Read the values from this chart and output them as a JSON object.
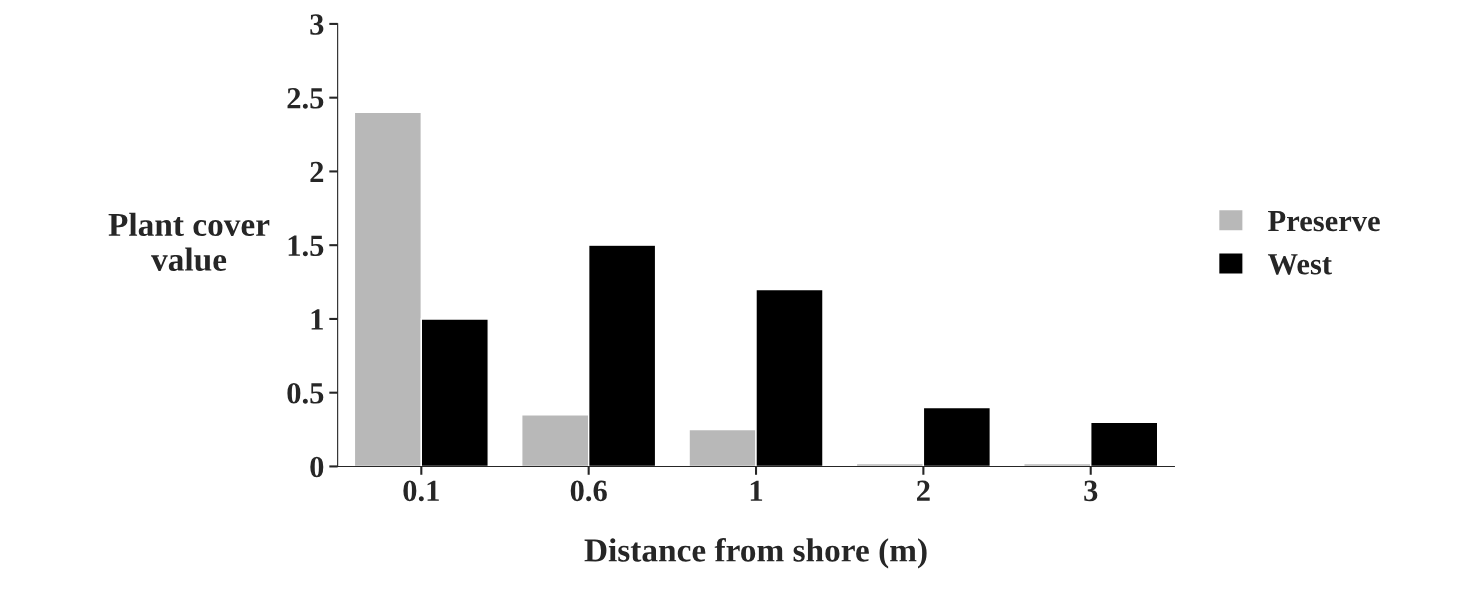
{
  "chart_data": {
    "type": "bar",
    "xlabel": "Distance from shore (m)",
    "ylabel": "Plant cover\nvalue",
    "categories": [
      "0.1",
      "0.6",
      "1",
      "2",
      "3"
    ],
    "series": [
      {
        "name": "Preserve",
        "color": "#b8b8b8",
        "values": [
          2.4,
          0.35,
          0.25,
          0.02,
          0.02
        ]
      },
      {
        "name": "West",
        "color": "#000000",
        "values": [
          1.0,
          1.5,
          1.2,
          0.4,
          0.3
        ]
      }
    ],
    "ylim": [
      0,
      3
    ],
    "yticks": [
      0,
      0.5,
      1,
      1.5,
      2,
      2.5,
      3
    ],
    "grid": false,
    "legend": "right"
  }
}
